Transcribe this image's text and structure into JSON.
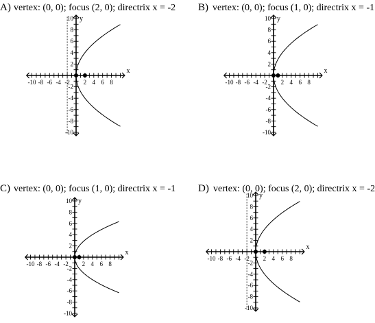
{
  "options": [
    {
      "letter": "A)",
      "description": "vertex: (0, 0); focus (2, 0); directrix x = -2",
      "p": 2,
      "focus_x": 2,
      "directrix_x": -2,
      "x_ticks": [
        "-10",
        "-8",
        "-6",
        "-4",
        "-2",
        "2",
        "4",
        "6",
        "8"
      ],
      "y_ticks": [
        "10",
        "8",
        "6",
        "4",
        "2",
        "-2",
        "-4",
        "-6",
        "-8",
        "-10"
      ],
      "x_axis_label": "x",
      "y_axis_label": "y"
    },
    {
      "letter": "B)",
      "description": "vertex: (0, 0); focus (1, 0); directrix x = -1",
      "p": 2,
      "focus_x": 1,
      "directrix_x": -1,
      "x_ticks": [
        "-10",
        "-8",
        "-6",
        "-4",
        "-2",
        "2",
        "4",
        "6",
        "8"
      ],
      "y_ticks": [
        "10",
        "8",
        "6",
        "4",
        "2",
        "-2",
        "-4",
        "-6",
        "-8",
        "-10"
      ],
      "x_axis_label": "x",
      "y_axis_label": "y"
    },
    {
      "letter": "C)",
      "description": "vertex: (0, 0); focus (1, 0); directrix x = -1",
      "p": 1,
      "focus_x": 1,
      "directrix_x": -1,
      "x_ticks": [
        "-10",
        "-8",
        "-6",
        "-4",
        "-2",
        "2",
        "4",
        "6",
        "8"
      ],
      "y_ticks": [
        "10",
        "8",
        "6",
        "4",
        "2",
        "-2",
        "-4",
        "-6",
        "-8",
        "-10"
      ],
      "x_axis_label": "x",
      "y_axis_label": "y"
    },
    {
      "letter": "D)",
      "description": "vertex: (0, 0); focus (2, 0); directrix x = -2",
      "p": 2,
      "focus_x": 2,
      "directrix_x": -2,
      "x_ticks": [
        "-10",
        "-8",
        "-6",
        "-4",
        "-2",
        "2",
        "4",
        "6",
        "8"
      ],
      "y_ticks": [
        "10",
        "8",
        "6",
        "4",
        "2",
        "-2",
        "-4",
        "-6",
        "-8",
        "-10"
      ],
      "x_axis_label": "x",
      "y_axis_label": "y"
    }
  ]
}
